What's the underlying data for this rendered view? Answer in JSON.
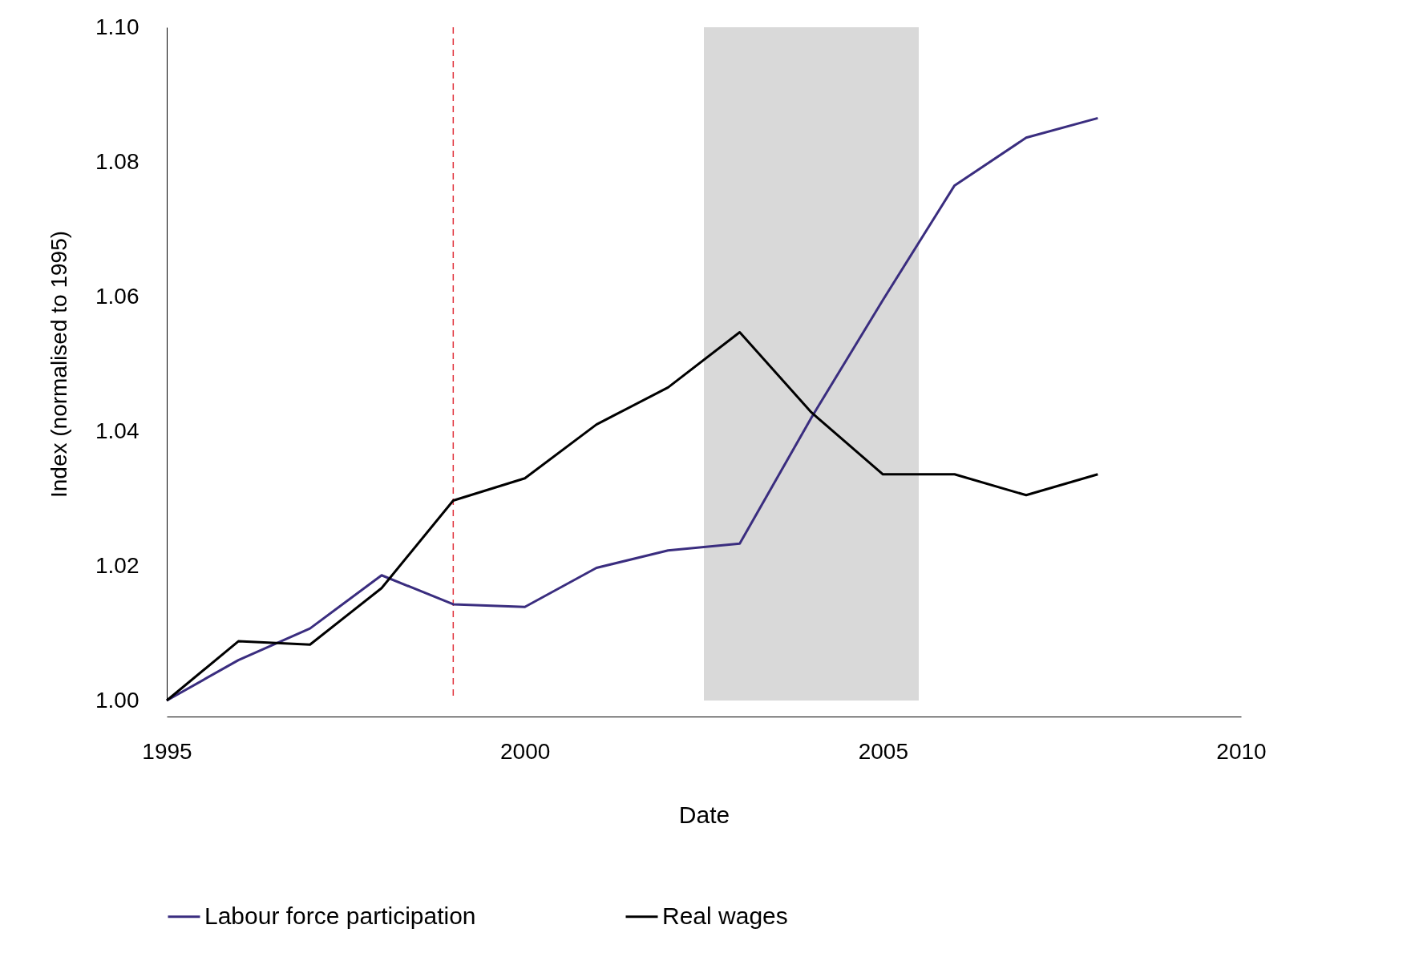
{
  "chart_data": {
    "type": "line",
    "xlabel": "Date",
    "ylabel": "Index (normalised to 1995)",
    "x": [
      1995,
      1996,
      1997,
      1998,
      1999,
      2000,
      2001,
      2002,
      2003,
      2004,
      2005,
      2006,
      2007,
      2008
    ],
    "series": [
      {
        "name": "Labour force participation",
        "color": "#3a2d7f",
        "values": [
          1.0,
          1.006,
          1.0107,
          1.0186,
          1.0143,
          1.0139,
          1.0197,
          1.0223,
          1.0233,
          1.042,
          1.0595,
          1.0765,
          1.0836,
          1.0865
        ]
      },
      {
        "name": "Real wages",
        "color": "#000000",
        "values": [
          1.0,
          1.0088,
          1.0083,
          1.0167,
          1.0297,
          1.033,
          1.041,
          1.0465,
          1.0547,
          1.0428,
          1.0336,
          1.0336,
          1.0305,
          1.0336
        ]
      }
    ],
    "xlim": [
      1995,
      2010
    ],
    "xticks": [
      1995,
      2000,
      2005,
      2010
    ],
    "ylim": [
      1.0,
      1.1
    ],
    "yticks": [
      {
        "value": 1.0,
        "label": "1.00"
      },
      {
        "value": 1.02,
        "label": "1.02"
      },
      {
        "value": 1.04,
        "label": "1.04"
      },
      {
        "value": 1.06,
        "label": "1.06"
      },
      {
        "value": 1.08,
        "label": "1.08"
      },
      {
        "value": 1.1,
        "label": "1.10"
      }
    ],
    "ref_lines": [
      {
        "axis": "x",
        "value": 1999,
        "label": null,
        "color": "#e0303a",
        "line_style": "dashed"
      }
    ],
    "bands": [
      {
        "axis": "x",
        "from": 2002.5,
        "to": 2005.5,
        "label": null,
        "color": "#d9d9d9"
      }
    ],
    "grid": false,
    "legend": "bottom",
    "marker": "none",
    "line_style": "solid"
  }
}
